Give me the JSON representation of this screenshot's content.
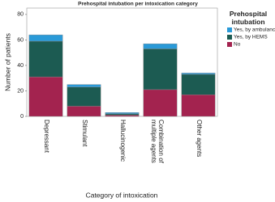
{
  "chart_data": {
    "type": "stacked_bar",
    "title": "Prehospital intubation per intoxication category",
    "x_label": "Category of intoxication",
    "y_label": "Number of patients",
    "legend_title": "Prehospital intubation",
    "categories": [
      "Depressant",
      "Stimulant",
      "Hallucinogenic",
      "Combination of multiple agents",
      "Other agents"
    ],
    "series": [
      {
        "name": "No",
        "color": "#a3234f",
        "values": [
          31,
          8,
          1,
          21,
          17
        ]
      },
      {
        "name": "Yes, by HEMS",
        "color": "#1c5b52",
        "values": [
          28,
          15,
          1,
          32,
          16
        ]
      },
      {
        "name": "Yes, by ambulance",
        "color": "#2a9ad8",
        "values": [
          5,
          2,
          1,
          4,
          1
        ]
      }
    ],
    "ylim": [
      0,
      85
    ],
    "yticks": [
      0,
      20,
      40,
      60,
      80
    ]
  }
}
